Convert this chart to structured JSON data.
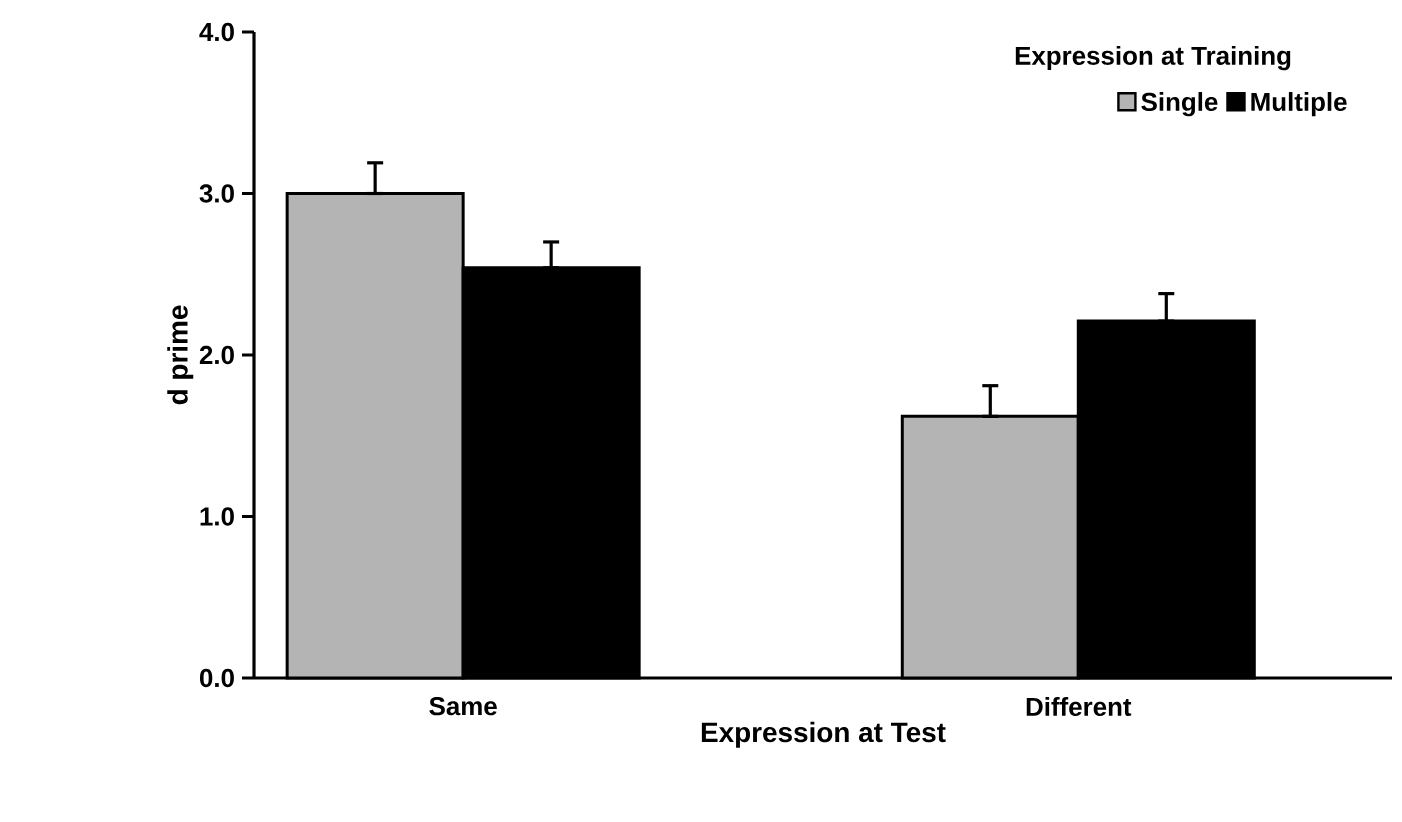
{
  "chart_data": {
    "type": "bar",
    "xlabel": "Expression at Test",
    "ylabel": "d prime",
    "legend_title": "Expression at Training",
    "categories": [
      "Same",
      "Different"
    ],
    "series": [
      {
        "name": "Single",
        "color": "#b4b4b4",
        "values": [
          3.0,
          1.62
        ],
        "errors": [
          [
            3.0,
            3.19
          ],
          [
            1.62,
            1.81
          ]
        ]
      },
      {
        "name": "Multiple",
        "color": "#000000",
        "values": [
          2.54,
          2.21
        ],
        "errors": [
          [
            2.54,
            2.7
          ],
          [
            2.21,
            2.38
          ]
        ]
      }
    ],
    "ylim": [
      0,
      4
    ],
    "yticks": [
      {
        "value": 0,
        "label": "0.0"
      },
      {
        "value": 1,
        "label": "1.0"
      },
      {
        "value": 2,
        "label": "2.0"
      },
      {
        "value": 3,
        "label": "3.0"
      },
      {
        "value": 4,
        "label": "4.0"
      }
    ],
    "grid": false,
    "legend": "top right"
  }
}
